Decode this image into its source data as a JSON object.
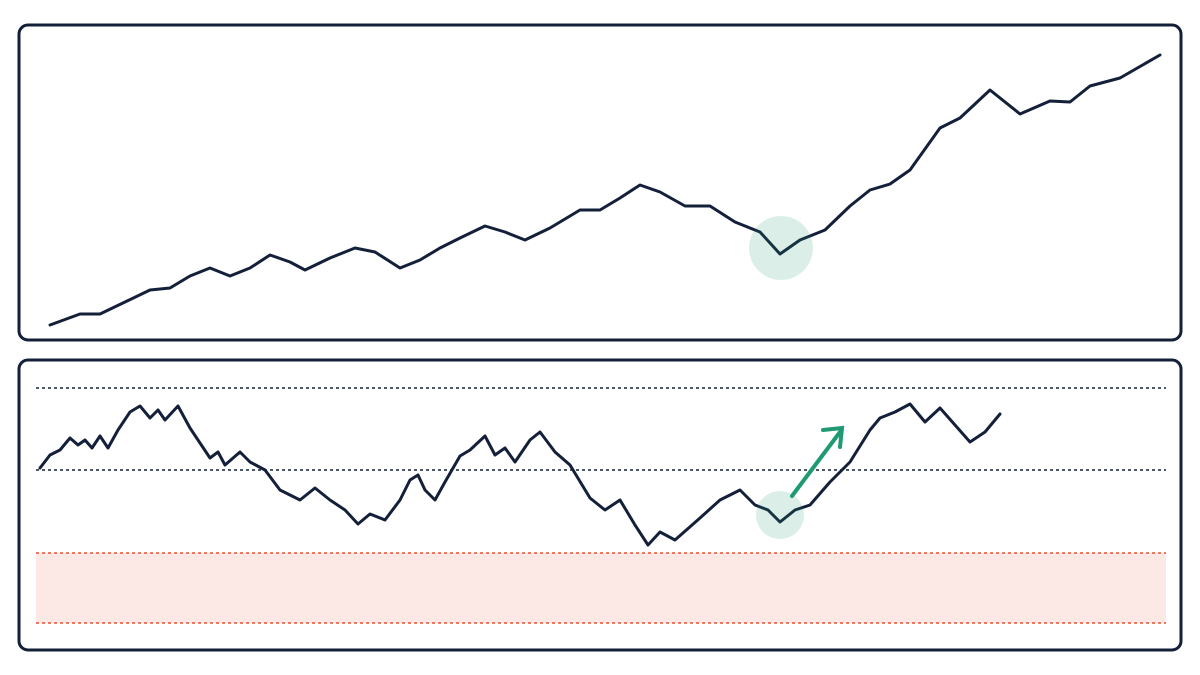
{
  "chart_data": [
    {
      "type": "line",
      "color": "#14203a",
      "xlim": [
        0,
        1200
      ],
      "ylim": [
        0,
        315
      ],
      "x": [
        50,
        80,
        100,
        125,
        150,
        170,
        190,
        210,
        230,
        250,
        270,
        290,
        305,
        330,
        355,
        375,
        400,
        420,
        440,
        460,
        485,
        505,
        525,
        550,
        580,
        600,
        620,
        640,
        660,
        685,
        710,
        735,
        760,
        780,
        800,
        825,
        850,
        870,
        890,
        910,
        940,
        960,
        990,
        1020,
        1050,
        1070,
        1090,
        1120,
        1160
      ],
      "values": [
        15,
        26,
        26,
        38,
        50,
        52,
        64,
        72,
        64,
        72,
        85,
        78,
        70,
        82,
        92,
        88,
        72,
        80,
        92,
        102,
        114,
        108,
        100,
        112,
        130,
        130,
        142,
        155,
        148,
        134,
        134,
        118,
        108,
        86,
        100,
        110,
        134,
        150,
        156,
        170,
        212,
        222,
        250,
        226,
        239,
        238,
        254,
        262,
        285
      ]
    },
    {
      "type": "line",
      "color": "#14203a",
      "xlim": [
        0,
        1200
      ],
      "ylim": [
        0,
        290
      ],
      "levels": [
        262,
        180
      ],
      "level_color": "#14203a",
      "band": [
        27,
        97
      ],
      "band_color": "#e8502f",
      "x": [
        40,
        50,
        60,
        70,
        78,
        85,
        92,
        100,
        108,
        118,
        130,
        140,
        150,
        158,
        165,
        178,
        190,
        210,
        218,
        225,
        240,
        250,
        265,
        280,
        300,
        315,
        330,
        345,
        358,
        370,
        385,
        400,
        410,
        418,
        425,
        435,
        445,
        460,
        470,
        485,
        495,
        505,
        515,
        530,
        540,
        555,
        570,
        590,
        605,
        620,
        635,
        648,
        660,
        675,
        700,
        720,
        740,
        755,
        768,
        780,
        795,
        810,
        830,
        850,
        870,
        880,
        895,
        910,
        925,
        940,
        955,
        970,
        985,
        1000
      ],
      "values": [
        182,
        195,
        200,
        212,
        205,
        210,
        202,
        214,
        202,
        220,
        238,
        244,
        232,
        240,
        230,
        244,
        222,
        192,
        198,
        185,
        198,
        188,
        180,
        160,
        150,
        162,
        150,
        140,
        126,
        136,
        130,
        150,
        170,
        175,
        160,
        150,
        168,
        194,
        200,
        214,
        195,
        202,
        188,
        210,
        218,
        198,
        185,
        152,
        140,
        150,
        125,
        105,
        118,
        110,
        132,
        150,
        160,
        145,
        140,
        128,
        140,
        145,
        168,
        188,
        220,
        232,
        238,
        246,
        228,
        242,
        225,
        208,
        218,
        236
      ]
    }
  ]
}
